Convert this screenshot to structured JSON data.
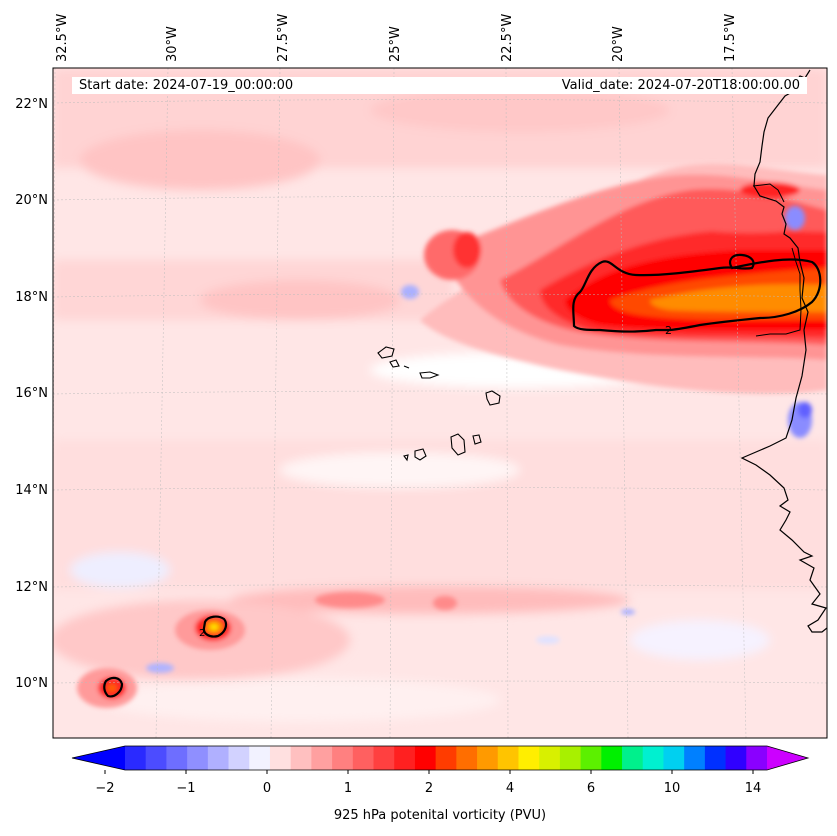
{
  "map": {
    "start_date_text": "Start date: 2024-07-19_00:00:00",
    "valid_date_text": "Valid_date: 2024-07-20T18:00:00.00",
    "longitude_labels": [
      "32.5°W",
      "30°W",
      "27.5°W",
      "25°W",
      "22.5°W",
      "20°W",
      "17.5°W"
    ],
    "latitude_labels": [
      "22°N",
      "20°N",
      "18°N",
      "16°N",
      "14°N",
      "12°N",
      "10°N"
    ],
    "contour_label": "2",
    "colors": {
      "neg_strong": "#0000ff",
      "neg_light": "#e8e8ff",
      "zero_white": "#ffffff",
      "pos_light": "#ffe2e2",
      "pos_mid": "#ff9a9a",
      "pos_strong": "#ff0000",
      "pos_orange": "#ff7f00",
      "pos_yellow": "#ffee00",
      "pos_magenta": "#cc00ff"
    }
  },
  "colorbar": {
    "label": "925 hPa potenital vorticity (PVU)",
    "ticks": [
      "−2",
      "−1",
      "0",
      "1",
      "2",
      "4",
      "6",
      "10",
      "14"
    ]
  }
}
